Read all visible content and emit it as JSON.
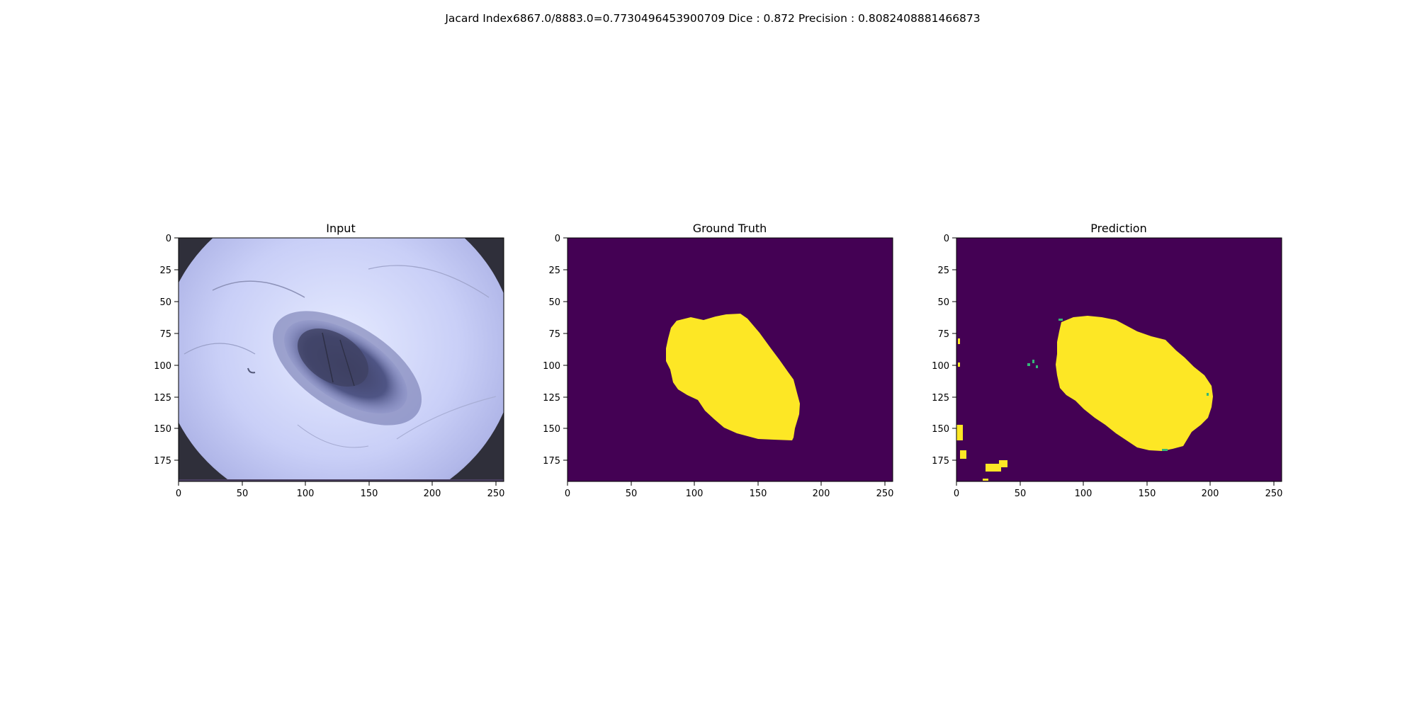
{
  "figure": {
    "suptitle": "Jacard Index6867.0/8883.0=0.7730496453900709 Dice : 0.872 Precision : 0.8082408881466873"
  },
  "panels": [
    {
      "title": "Input",
      "content": "dermoscopy image of skin lesion",
      "xticks": [
        "0",
        "50",
        "100",
        "150",
        "200",
        "250"
      ],
      "yticks": [
        "0",
        "25",
        "50",
        "75",
        "100",
        "125",
        "150",
        "175"
      ]
    },
    {
      "title": "Ground Truth",
      "content": "binary segmentation mask",
      "xticks": [
        "0",
        "50",
        "100",
        "150",
        "200",
        "250"
      ],
      "yticks": [
        "0",
        "25",
        "50",
        "75",
        "100",
        "125",
        "150",
        "175"
      ]
    },
    {
      "title": "Prediction",
      "content": "predicted segmentation mask",
      "xticks": [
        "0",
        "50",
        "100",
        "150",
        "200",
        "250"
      ],
      "yticks": [
        "0",
        "25",
        "50",
        "75",
        "100",
        "125",
        "150",
        "175"
      ]
    }
  ],
  "colors": {
    "mask_background": "#440154",
    "mask_foreground": "#fde725",
    "mask_edge": "#35b779",
    "skin_light": "#dfe5ff",
    "skin_mid": "#b8c0f2",
    "lesion_dark": "#4a4f7c",
    "vignette": "#2a2a33"
  }
}
